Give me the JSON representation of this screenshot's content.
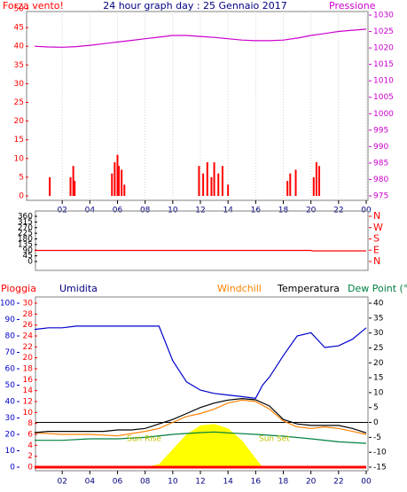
{
  "chart_data": [
    {
      "type": "combo",
      "title": "24 hour graph day : 25 Gennaio 2017",
      "y_label": "Forza vento!",
      "y2_label": "Pressione",
      "y_color": "#ff0000",
      "y2_color": "#cc00cc",
      "xlim": [
        0,
        24
      ],
      "xticks": [
        {
          "value": 2,
          "label": "02"
        },
        {
          "value": 4,
          "label": "04"
        },
        {
          "value": 6,
          "label": "06"
        },
        {
          "value": 8,
          "label": "08"
        },
        10,
        12,
        14,
        16,
        18,
        20,
        22,
        {
          "value": 24,
          "label": "00"
        }
      ],
      "ylim": [
        0,
        50
      ],
      "yticks": [
        0,
        5,
        10,
        15,
        20,
        25,
        30,
        35,
        40,
        45,
        50
      ],
      "y2lim": [
        975,
        1030
      ],
      "y2ticks": [
        975,
        980,
        985,
        990,
        995,
        1000,
        1005,
        1010,
        1015,
        1020,
        1025,
        1030
      ],
      "grid": true,
      "series": [
        {
          "type": "bar",
          "axis": "y",
          "color": "#ff0000",
          "x": [
            1.1,
            2.6,
            2.8,
            2.9,
            5.6,
            5.8,
            6.0,
            6.1,
            6.3,
            6.5,
            11.9,
            12.2,
            12.5,
            12.8,
            13.0,
            13.3,
            13.6,
            14.0,
            18.3,
            18.5,
            18.9,
            20.2,
            20.4,
            20.6
          ],
          "values": [
            5,
            5,
            8,
            4,
            6,
            9,
            11,
            8,
            7,
            3,
            8,
            6,
            9,
            5,
            9,
            6,
            8,
            3,
            4,
            6,
            7,
            5,
            9,
            8
          ]
        },
        {
          "type": "line",
          "axis": "y2",
          "color": "#cc00cc",
          "x": [
            0,
            1,
            2,
            3,
            4,
            5,
            6,
            7,
            8,
            9,
            10,
            11,
            12,
            13,
            14,
            15,
            16,
            17,
            18,
            19,
            20,
            21,
            22,
            23,
            24
          ],
          "values": [
            1020.5,
            1020.3,
            1020.2,
            1020.4,
            1020.8,
            1021.3,
            1021.8,
            1022.3,
            1022.8,
            1023.3,
            1023.8,
            1023.8,
            1023.5,
            1023.2,
            1022.8,
            1022.4,
            1022.2,
            1022.2,
            1022.4,
            1023,
            1023.8,
            1024.4,
            1025,
            1025.4,
            1025.7
          ]
        }
      ]
    },
    {
      "type": "combo",
      "xlim": [
        0,
        24
      ],
      "ylim": [
        0,
        360
      ],
      "yticks": [
        0,
        45,
        90,
        135,
        180,
        225,
        270,
        315,
        360
      ],
      "y_color": "#000000",
      "y2_color": "#ff0000",
      "y2lim": [
        0,
        360
      ],
      "y2ticks": [
        {
          "value": 0,
          "label": "N"
        },
        {
          "value": 90,
          "label": "E"
        },
        {
          "value": 180,
          "label": "S"
        },
        {
          "value": 270,
          "label": "W"
        },
        {
          "value": 360,
          "label": "N"
        }
      ],
      "series": [
        {
          "type": "line",
          "axis": "y",
          "color": "#ff0000",
          "x": [
            0,
            20,
            20.1,
            24
          ],
          "values": [
            88,
            88,
            85,
            85
          ]
        }
      ]
    },
    {
      "type": "combo",
      "y3_label": "Pioggia",
      "y_label": "Umidita",
      "labels": [
        {
          "text": "Windchill",
          "color": "#ff8000"
        },
        {
          "text": "Temperatura",
          "color": "#000000"
        },
        {
          "text": "Dew Point (°C",
          "color": "#008040"
        }
      ],
      "annotations": [
        "Sun Rise",
        "Sun Set"
      ],
      "y_color": "#0000cc",
      "y2_color": "#000000",
      "y3_color": "#ff0000",
      "xlim": [
        0,
        24
      ],
      "xticks": [
        {
          "value": 2,
          "label": "02"
        },
        {
          "value": 4,
          "label": "04"
        },
        {
          "value": 6,
          "label": "06"
        },
        {
          "value": 8,
          "label": "08"
        },
        10,
        12,
        14,
        16,
        18,
        20,
        22,
        {
          "value": 24,
          "label": "00"
        }
      ],
      "ylim": [
        0,
        100
      ],
      "yticks": [
        0,
        10,
        20,
        30,
        40,
        50,
        60,
        70,
        80,
        90,
        100
      ],
      "y3lim": [
        0,
        30
      ],
      "y3ticks": [
        0,
        2,
        4,
        6,
        8,
        10,
        12,
        14,
        16,
        18,
        20,
        22,
        24,
        26,
        28,
        30
      ],
      "y2lim": [
        -15,
        40
      ],
      "y2ticks": [
        -15,
        -10,
        -5,
        0,
        5,
        10,
        15,
        20,
        25,
        30,
        35,
        40
      ],
      "reference_line": 0,
      "series": [
        {
          "type": "area",
          "axis": "y2",
          "color": "#ffff00",
          "x": [
            0,
            8,
            9,
            10,
            11,
            12,
            13,
            14,
            15,
            16,
            16.5,
            24
          ],
          "values": [
            -15,
            -15,
            -14,
            -9,
            -4,
            -1,
            -0.5,
            -2,
            -6,
            -12,
            -15,
            -15
          ]
        },
        {
          "type": "line",
          "axis": "y3",
          "color": "#ff0000",
          "x": [
            0,
            24
          ],
          "values": [
            0,
            0
          ]
        },
        {
          "type": "line",
          "axis": "y",
          "color": "#0000cc",
          "x": [
            0,
            1,
            2,
            3,
            4,
            5,
            6,
            7,
            8,
            9,
            10,
            11,
            12,
            13,
            14,
            15,
            16,
            16.5,
            17,
            18,
            19,
            20,
            21,
            22,
            23,
            24
          ],
          "values": [
            84,
            85,
            85,
            86,
            86,
            86,
            86,
            86,
            86,
            86,
            65,
            52,
            47,
            45,
            44,
            43,
            42,
            50,
            55,
            68,
            80,
            82,
            73,
            74,
            78,
            85
          ]
        },
        {
          "type": "line",
          "axis": "y2",
          "color": "#ff8000",
          "x": [
            0,
            2,
            4,
            6,
            8,
            9,
            10,
            11,
            12,
            13,
            14,
            15,
            16,
            17,
            18,
            19,
            20,
            21,
            22,
            23,
            24
          ],
          "values": [
            -3.5,
            -4,
            -4,
            -4.5,
            -3,
            -2,
            0,
            2,
            3,
            4.5,
            6.5,
            7.5,
            7,
            4.5,
            0.5,
            -1.5,
            -2,
            -1.5,
            -2,
            -3,
            -4
          ]
        },
        {
          "type": "line",
          "axis": "y2",
          "color": "#000000",
          "x": [
            0,
            1,
            2,
            3,
            4,
            5,
            6,
            7,
            8,
            9,
            10,
            11,
            12,
            13,
            14,
            15,
            16,
            17,
            18,
            19,
            20,
            21,
            22,
            23,
            24
          ],
          "values": [
            -3.4,
            -3,
            -3,
            -3,
            -3,
            -3,
            -2.5,
            -2.5,
            -2,
            -0.5,
            1,
            3,
            5,
            6.5,
            7.5,
            8,
            7.6,
            5.5,
            1,
            -0.5,
            -1,
            -1,
            -1,
            -2,
            -3.5
          ]
        },
        {
          "type": "line",
          "axis": "y2",
          "color": "#008040",
          "x": [
            0,
            2,
            4,
            6,
            8,
            10,
            12,
            13,
            14,
            16,
            18,
            20,
            22,
            24
          ],
          "values": [
            -6,
            -6,
            -5.5,
            -5.5,
            -5,
            -4,
            -3.4,
            -3.2,
            -3.5,
            -4,
            -4.6,
            -5.5,
            -6.5,
            -7
          ]
        }
      ]
    }
  ]
}
